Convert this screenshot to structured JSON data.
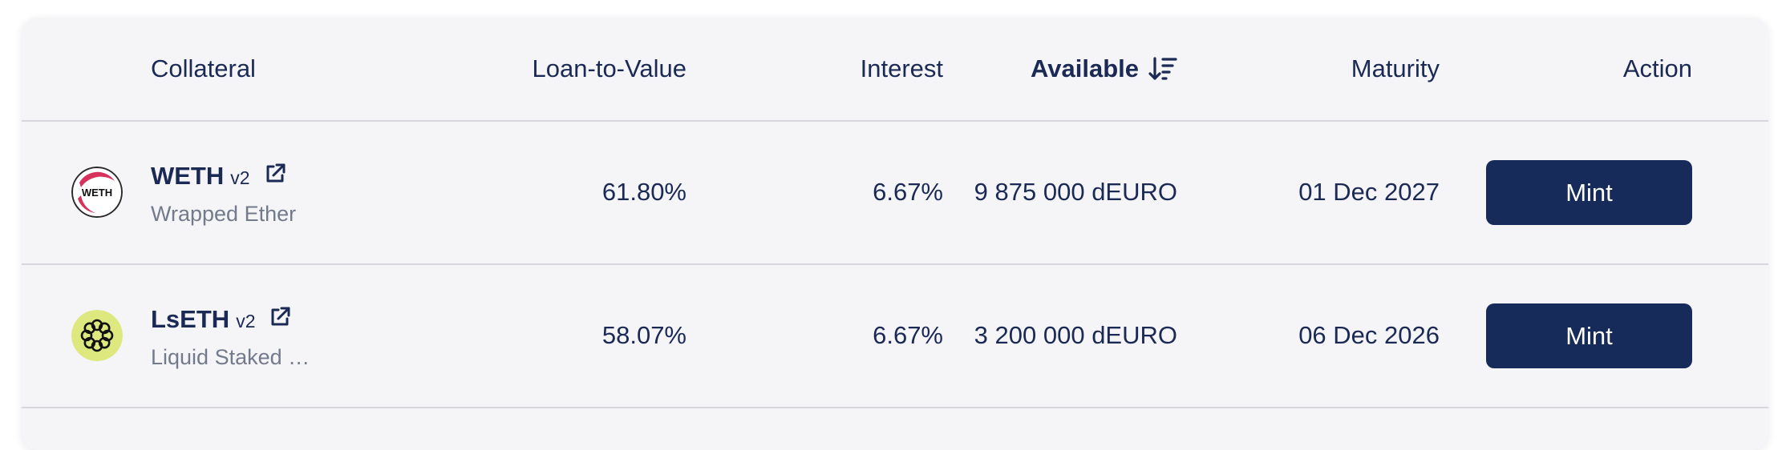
{
  "colors": {
    "text_primary": "#1b2a55",
    "text_secondary": "#727a8c",
    "card_background": "#f5f5f8",
    "divider": "#d7d8de",
    "button_background": "#172b5b",
    "button_text": "#ffffff"
  },
  "table": {
    "headers": {
      "collateral": "Collateral",
      "ltv": "Loan-to-Value",
      "interest": "Interest",
      "available": "Available",
      "maturity": "Maturity",
      "action": "Action"
    },
    "sort": {
      "column": "available",
      "icon": "sort-descending-icon"
    },
    "rows": [
      {
        "symbol": "WETH",
        "version": "v2",
        "name": "Wrapped Ether",
        "icon": "weth-token-icon",
        "ltv": "61.80%",
        "interest": "6.67%",
        "available": "9 875 000 dEURO",
        "maturity": "01 Dec 2027",
        "action_label": "Mint"
      },
      {
        "symbol": "LsETH",
        "version": "v2",
        "name": "Liquid Staked …",
        "icon": "lseth-token-icon",
        "ltv": "58.07%",
        "interest": "6.67%",
        "available": "3 200 000 dEURO",
        "maturity": "06 Dec 2026",
        "action_label": "Mint"
      }
    ]
  }
}
